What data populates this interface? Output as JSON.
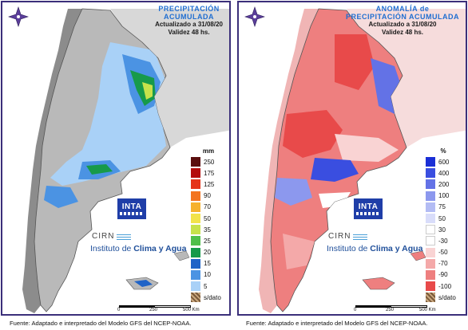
{
  "left_panel": {
    "title_line1": "PRECIPITACIÓN",
    "title_line2": "ACUMULADA",
    "updated": "Actualizado a 31/08/20",
    "validity": "Validez 48 hs.",
    "legend_unit": "mm",
    "legend_items": [
      {
        "label": "250",
        "color": "#5a0f0f"
      },
      {
        "label": "175",
        "color": "#b30c0c"
      },
      {
        "label": "125",
        "color": "#e53319"
      },
      {
        "label": "90",
        "color": "#f3741f"
      },
      {
        "label": "70",
        "color": "#f6b12e"
      },
      {
        "label": "50",
        "color": "#f2e34a"
      },
      {
        "label": "35",
        "color": "#c7e24b"
      },
      {
        "label": "25",
        "color": "#4fbf4a"
      },
      {
        "label": "20",
        "color": "#179a4a"
      },
      {
        "label": "15",
        "color": "#1f63c7"
      },
      {
        "label": "10",
        "color": "#4b93e3"
      },
      {
        "label": "5",
        "color": "#a9d1f7"
      }
    ],
    "nodata_label": "s/dato",
    "scale": {
      "labels": [
        "0",
        "250",
        "500 Km"
      ]
    },
    "footer": "Fuente: Adaptado e interpretado del Modelo GFS del NCEP-NOAA."
  },
  "right_panel": {
    "title_line1": "ANOMALÍA de",
    "title_line2": "PRECIPITACIÓN ACUMULADA",
    "updated": "Actualizado a 31/08/20",
    "validity": "Validez 48 hs.",
    "legend_unit": "%",
    "legend_items": [
      {
        "label": "600",
        "color": "#1a2fd6"
      },
      {
        "label": "400",
        "color": "#3a4ee0"
      },
      {
        "label": "200",
        "color": "#6372e6"
      },
      {
        "label": "100",
        "color": "#8c98ee"
      },
      {
        "label": "75",
        "color": "#b3bcf4"
      },
      {
        "label": "50",
        "color": "#d9ddfa"
      },
      {
        "label": "30",
        "color": "#ffffff"
      },
      {
        "label": "-30",
        "color": "#ffffff"
      },
      {
        "label": "-50",
        "color": "#f9d3d3"
      },
      {
        "label": "-70",
        "color": "#f4a9a9"
      },
      {
        "label": "-90",
        "color": "#ee7f7f"
      },
      {
        "label": "-100",
        "color": "#e84a4a"
      }
    ],
    "nodata_label": "s/dato",
    "scale": {
      "labels": [
        "0",
        "250",
        "500 Km"
      ]
    },
    "footer": "Fuente: Adaptado e interpretado del Modelo GFS del NCEP-NOAA."
  },
  "branding": {
    "inta": "INTA",
    "cirn": "CIRN",
    "instituto_prefix": "Instituto de ",
    "instituto_bold": "Clima y Agua"
  }
}
